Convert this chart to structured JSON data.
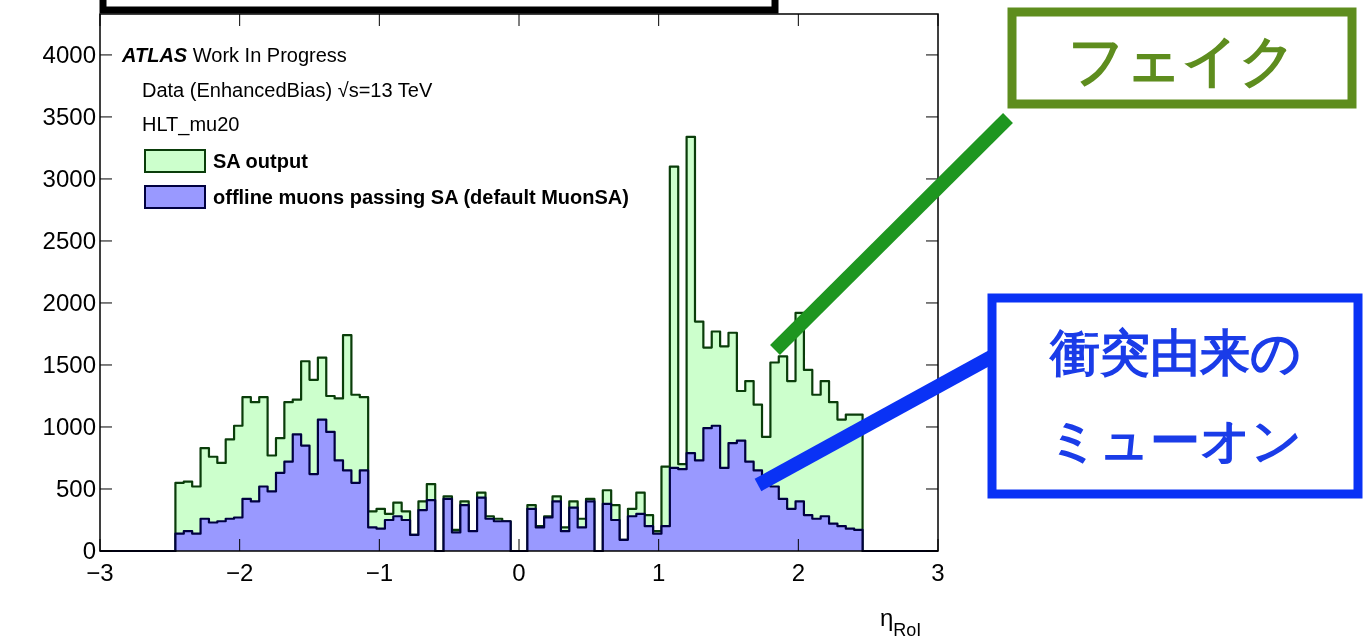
{
  "chart_data": {
    "type": "histogram",
    "xlabel": "η$_{RoI}$",
    "bins": [
      -3,
      -2.94,
      -2.88,
      -2.82,
      -2.76,
      -2.7,
      -2.64,
      -2.58,
      -2.52,
      -2.46,
      -2.4,
      -2.34,
      -2.28,
      -2.22,
      -2.16,
      -2.1,
      -2.04,
      -1.98,
      -1.92,
      -1.86,
      -1.8,
      -1.74,
      -1.68,
      -1.62,
      -1.56,
      -1.5,
      -1.44,
      -1.38,
      -1.32,
      -1.26,
      -1.2,
      -1.14,
      -1.08,
      -1.02,
      -0.96,
      -0.9,
      -0.84,
      -0.78,
      -0.72,
      -0.66,
      -0.6,
      -0.54,
      -0.48,
      -0.42,
      -0.36,
      -0.3,
      -0.24,
      -0.18,
      -0.12,
      -0.06,
      0,
      0.06,
      0.12,
      0.18,
      0.24,
      0.3,
      0.36,
      0.42,
      0.48,
      0.54,
      0.6,
      0.66,
      0.72,
      0.78,
      0.84,
      0.9,
      0.96,
      1.02,
      1.08,
      1.14,
      1.2,
      1.26,
      1.32,
      1.38,
      1.44,
      1.5,
      1.56,
      1.62,
      1.68,
      1.74,
      1.8,
      1.86,
      1.92,
      1.98,
      2.04,
      2.1,
      2.16,
      2.22,
      2.28,
      2.34,
      2.4,
      2.46,
      2.52,
      2.58,
      2.64,
      2.7,
      2.76,
      2.82,
      2.88,
      2.94,
      3
    ],
    "series": [
      {
        "name": "SA output",
        "color": "#ccffcc",
        "values": [
          0,
          0,
          0,
          0,
          0,
          0,
          0,
          0,
          0,
          550,
          560,
          520,
          830,
          760,
          710,
          900,
          1010,
          1240,
          1200,
          1240,
          770,
          910,
          1200,
          1220,
          1530,
          1380,
          1560,
          1250,
          1230,
          1740,
          1260,
          1240,
          320,
          340,
          300,
          390,
          320,
          130,
          400,
          540,
          0,
          440,
          170,
          400,
          160,
          470,
          280,
          260,
          240,
          0,
          0,
          370,
          200,
          280,
          440,
          190,
          400,
          260,
          420,
          0,
          490,
          370,
          90,
          340,
          470,
          290,
          160,
          680,
          3100,
          700,
          3340,
          1850,
          1640,
          1770,
          1650,
          1760,
          1290,
          1370,
          1180,
          920,
          1520,
          1570,
          1370,
          1920,
          1460,
          1260,
          1370,
          1200,
          1060,
          1100,
          1100,
          0,
          0,
          0,
          0,
          0,
          0,
          0,
          0,
          0
        ]
      },
      {
        "name": "offline muons passing SA (default MuonSA)",
        "color": "#9999ff",
        "values": [
          0,
          0,
          0,
          0,
          0,
          0,
          0,
          0,
          0,
          140,
          160,
          140,
          260,
          230,
          240,
          260,
          270,
          420,
          400,
          520,
          480,
          630,
          720,
          940,
          850,
          620,
          1060,
          960,
          730,
          650,
          550,
          650,
          190,
          180,
          250,
          280,
          250,
          130,
          330,
          410,
          0,
          420,
          150,
          370,
          160,
          430,
          260,
          240,
          240,
          0,
          0,
          340,
          190,
          270,
          400,
          160,
          350,
          190,
          400,
          0,
          380,
          250,
          90,
          280,
          300,
          200,
          140,
          200,
          670,
          660,
          790,
          730,
          990,
          1010,
          670,
          870,
          890,
          720,
          650,
          550,
          520,
          420,
          340,
          400,
          290,
          260,
          280,
          220,
          200,
          180,
          170,
          0,
          0,
          0,
          0,
          0,
          0,
          0,
          0,
          0
        ]
      }
    ],
    "xlim": [
      -3,
      3
    ],
    "ylim": [
      0,
      4330
    ],
    "xticks": [
      -3,
      -2,
      -1,
      0,
      1,
      2,
      3
    ],
    "yticks": [
      0,
      500,
      1000,
      1500,
      2000,
      2500,
      3000,
      3500,
      4000
    ],
    "legend": "top left",
    "grid": false,
    "annotations": [
      "ATLAS Work In Progress",
      "Data (EnhancedBias) √s=13 TeV",
      "HLT_mu20",
      "フェイク",
      "衝突由来の",
      "ミューオン"
    ]
  }
}
